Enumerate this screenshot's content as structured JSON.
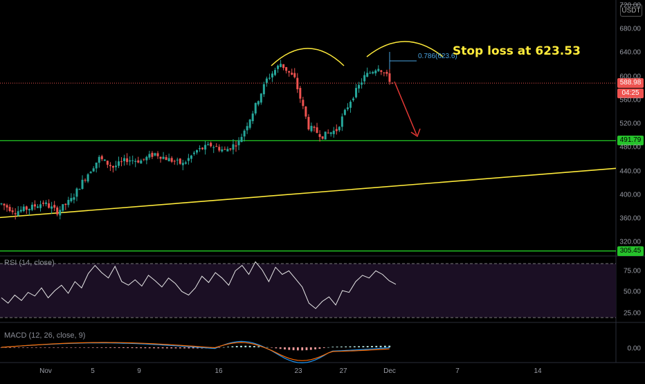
{
  "currency_button": "USDT",
  "annotation": {
    "text": "Stop loss at 623.53",
    "fib_label": "0.786(623.6)"
  },
  "price_labels": [
    {
      "text": "588.98",
      "bg": "#ef5350",
      "fg": "#ffffff",
      "value": 588.98
    },
    {
      "text": "04:25",
      "bg": "#ef5350",
      "fg": "#ffffff",
      "value": 569
    },
    {
      "text": "491.79",
      "bg": "#26c22b",
      "fg": "#000000",
      "value": 491.79
    },
    {
      "text": "305.45",
      "bg": "#26c22b",
      "fg": "#000000",
      "value": 305.45
    }
  ],
  "rsi": {
    "title": "RSI (14, close)",
    "ticks": [
      "75.00",
      "50.00",
      "25.00"
    ]
  },
  "macd": {
    "title": "MACD (12, 26, close, 9)",
    "ticks": [
      "0.00"
    ]
  },
  "colors": {
    "up": "#26a69a",
    "down": "#ef5350",
    "support": "#27e22a",
    "trend": "#ffeb3b",
    "arrow": "#e53935",
    "rsi_bg": "#1b0f24"
  },
  "chart_data": {
    "type": "candlestick",
    "ylim": [
      290,
      720
    ],
    "yticks": [
      "720.00",
      "680.00",
      "640.00",
      "600.00",
      "560.00",
      "520.00",
      "480.00",
      "440.00",
      "400.00",
      "360.00",
      "320.00"
    ],
    "x_labels": [
      "Nov",
      "5",
      "9",
      "16",
      "23",
      "27",
      "Dec",
      "7",
      "14"
    ],
    "horizontal_levels": [
      491.79,
      305.45,
      588.98
    ],
    "trendline": {
      "from": 362,
      "to": 445
    },
    "segments": [
      {
        "start": 385,
        "end": 372
      },
      {
        "start": 372,
        "end": 378
      },
      {
        "start": 378,
        "end": 387
      },
      {
        "start": 387,
        "end": 372
      },
      {
        "start": 372,
        "end": 392
      },
      {
        "start": 392,
        "end": 430
      },
      {
        "start": 430,
        "end": 462
      },
      {
        "start": 462,
        "end": 447
      },
      {
        "start": 447,
        "end": 460
      },
      {
        "start": 460,
        "end": 458
      },
      {
        "start": 458,
        "end": 470
      },
      {
        "start": 470,
        "end": 460
      },
      {
        "start": 460,
        "end": 452
      },
      {
        "start": 452,
        "end": 475
      },
      {
        "start": 475,
        "end": 484
      },
      {
        "start": 484,
        "end": 475
      },
      {
        "start": 475,
        "end": 490
      },
      {
        "start": 490,
        "end": 540
      },
      {
        "start": 540,
        "end": 595
      },
      {
        "start": 595,
        "end": 622
      },
      {
        "start": 622,
        "end": 596
      },
      {
        "start": 596,
        "end": 515
      },
      {
        "start": 515,
        "end": 500
      },
      {
        "start": 500,
        "end": 510
      },
      {
        "start": 510,
        "end": 560
      },
      {
        "start": 560,
        "end": 600
      },
      {
        "start": 600,
        "end": 617
      },
      {
        "start": 617,
        "end": 588.98
      }
    ],
    "rsi_series": [
      44,
      38,
      47,
      41,
      50,
      46,
      55,
      44,
      52,
      58,
      49,
      62,
      55,
      71,
      80,
      72,
      66,
      79,
      62,
      58,
      64,
      57,
      69,
      63,
      56,
      66,
      60,
      51,
      47,
      55,
      68,
      61,
      72,
      66,
      58,
      74,
      80,
      70,
      84,
      75,
      62,
      78,
      70,
      74,
      65,
      56,
      38,
      32,
      40,
      45,
      36,
      52,
      50,
      62,
      69,
      66,
      74,
      70,
      63,
      59
    ],
    "macd_ylim": [
      -12,
      12
    ]
  }
}
